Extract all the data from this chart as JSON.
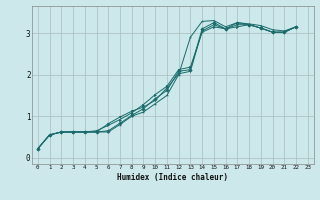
{
  "xlabel": "Humidex (Indice chaleur)",
  "bg_color": "#cce8ea",
  "grid_color": "#aabcbe",
  "line_color": "#1a6b6b",
  "xlim": [
    -0.5,
    23.5
  ],
  "ylim": [
    -0.15,
    3.65
  ],
  "xticks": [
    0,
    1,
    2,
    3,
    4,
    5,
    6,
    7,
    8,
    9,
    10,
    11,
    12,
    13,
    14,
    15,
    16,
    17,
    18,
    19,
    20,
    21,
    22,
    23
  ],
  "yticks": [
    0,
    1,
    2,
    3
  ],
  "series": [
    [
      0.22,
      0.55,
      0.62,
      0.62,
      0.62,
      0.62,
      0.62,
      0.8,
      1.0,
      1.1,
      1.3,
      1.5,
      2.0,
      2.9,
      3.28,
      3.3,
      3.15,
      3.25,
      3.22,
      3.18,
      3.08,
      3.05,
      3.15
    ],
    [
      0.22,
      0.55,
      0.62,
      0.62,
      0.62,
      0.62,
      0.65,
      0.83,
      1.02,
      1.18,
      1.42,
      1.62,
      2.08,
      2.12,
      3.1,
      3.25,
      3.1,
      3.25,
      3.2,
      3.12,
      3.02,
      3.02,
      3.15
    ],
    [
      0.22,
      0.55,
      0.62,
      0.62,
      0.62,
      0.62,
      0.82,
      0.98,
      1.12,
      1.22,
      1.38,
      1.68,
      2.02,
      2.08,
      3.05,
      3.2,
      3.1,
      3.2,
      3.2,
      3.12,
      3.02,
      3.02,
      3.15
    ],
    [
      0.22,
      0.55,
      0.62,
      0.62,
      0.62,
      0.65,
      0.78,
      0.92,
      1.08,
      1.28,
      1.52,
      1.72,
      2.12,
      2.18,
      3.02,
      3.15,
      3.1,
      3.15,
      3.2,
      3.12,
      3.02,
      3.02,
      3.15
    ]
  ]
}
